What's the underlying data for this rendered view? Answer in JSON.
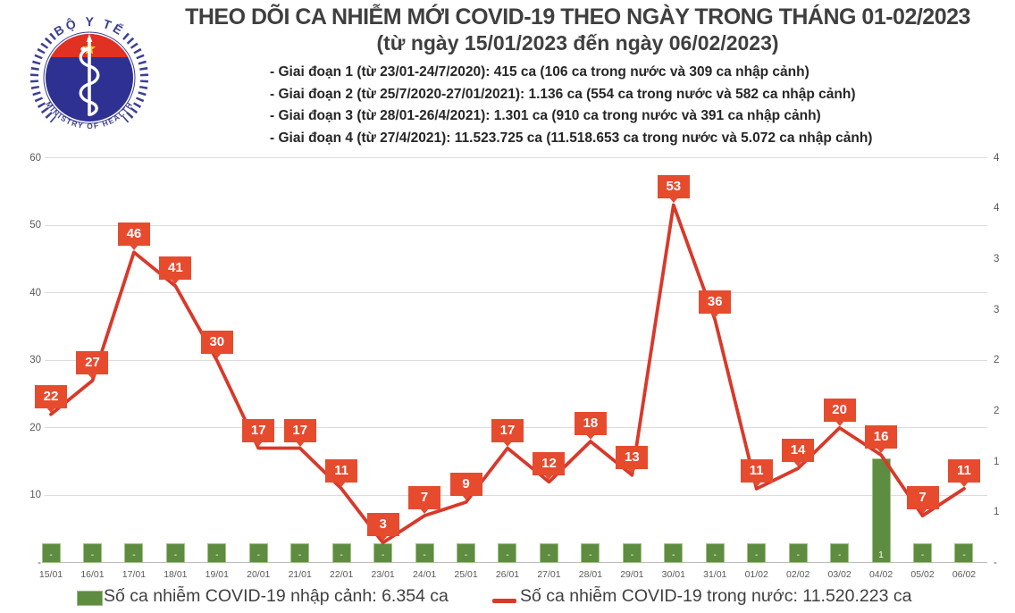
{
  "header": {
    "title_line1": "THEO DÕI CA NHIỄM MỚI COVID-19 THEO NGÀY TRONG THÁNG 01-02/2023",
    "title_line2": "(từ ngày 15/01/2023 đến ngày 06/02/2023)",
    "bullets": [
      "- Giai đoạn 1 (từ 23/01-24/7/2020): 415 ca (106 ca trong nước và 309 ca nhập cảnh)",
      "- Giai đoạn 2 (từ 25/7/2020-27/01/2021): 1.136 ca (554 ca trong nước và 582 ca nhập cảnh)",
      "- Giai đoạn 3 (từ 28/01-26/4/2021): 1.301 ca (910 ca trong nước và 391 ca nhập cảnh)",
      "- Giai đoạn 4 (từ 27/4/2021): 11.523.725 ca (11.518.653 ca trong nước và 5.072 ca nhập cảnh)"
    ],
    "logo": {
      "top_text": "BỘ Y TẾ",
      "bottom_text": "MINISTRY OF HEALTH"
    }
  },
  "chart_data": {
    "type": "line+bar",
    "categories": [
      "15/01",
      "16/01",
      "17/01",
      "18/01",
      "19/01",
      "20/01",
      "21/01",
      "22/01",
      "23/01",
      "24/01",
      "25/01",
      "26/01",
      "27/01",
      "28/01",
      "29/01",
      "30/01",
      "31/01",
      "01/02",
      "02/02",
      "03/02",
      "04/02",
      "05/02",
      "06/02"
    ],
    "series": [
      {
        "name": "Số ca nhiễm COVID-19 trong nước",
        "type": "line",
        "color": "#d8392a",
        "values": [
          22,
          27,
          46,
          41,
          30,
          17,
          17,
          11,
          3,
          7,
          9,
          17,
          12,
          18,
          13,
          53,
          36,
          11,
          14,
          20,
          16,
          7,
          11
        ]
      },
      {
        "name": "Số ca nhiễm COVID-19 nhập cảnh",
        "type": "bar",
        "color": "#5e8c40",
        "values": [
          0,
          0,
          0,
          0,
          0,
          0,
          0,
          0,
          0,
          0,
          0,
          0,
          0,
          0,
          0,
          0,
          0,
          0,
          0,
          0,
          1,
          0,
          0
        ],
        "labels": [
          "-",
          "-",
          "-",
          "-",
          "-",
          "-",
          "-",
          "-",
          "-",
          "-",
          "-",
          "-",
          "-",
          "-",
          "-",
          "-",
          "-",
          "-",
          "-",
          "-",
          "1",
          "-",
          "-"
        ]
      }
    ],
    "left_axis": {
      "ticks": [
        "60",
        "50",
        "40",
        "30",
        "20",
        "10",
        "-"
      ],
      "range": [
        0,
        60
      ]
    },
    "right_axis": {
      "ticks": [
        "4",
        "4",
        "3",
        "3",
        "2",
        "2",
        "1",
        "1",
        "-"
      ]
    },
    "grid": true,
    "legend_position": "bottom",
    "data_label_box_color": "#e64b2e"
  },
  "legend": {
    "imported": {
      "label": "Số ca nhiễm COVID-19 nhập cảnh: 6.354 ca",
      "color": "#5e8c40"
    },
    "domestic": {
      "label": "Số ca nhiễm COVID-19 trong nước: 11.520.223 ca",
      "color": "#d8392a"
    }
  },
  "colors": {
    "line_red": "#d8392a",
    "callout_orange": "#e64b2e",
    "bar_green": "#5e8c40",
    "grid_gray": "#dcdcdc",
    "text_dark": "#3f3f3f",
    "axis_text": "#595959",
    "logo_blue": "#2e3192",
    "logo_red": "#e13122",
    "logo_star_yellow": "#f9c623"
  }
}
